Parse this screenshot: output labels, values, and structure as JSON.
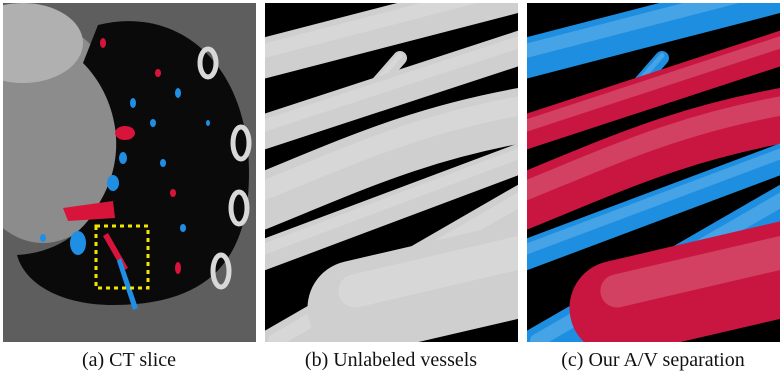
{
  "figure": {
    "panels": [
      {
        "caption": "(a) CT slice"
      },
      {
        "caption": "(b) Unlabeled vessels"
      },
      {
        "caption": "(c) Our A/V separation"
      }
    ]
  }
}
